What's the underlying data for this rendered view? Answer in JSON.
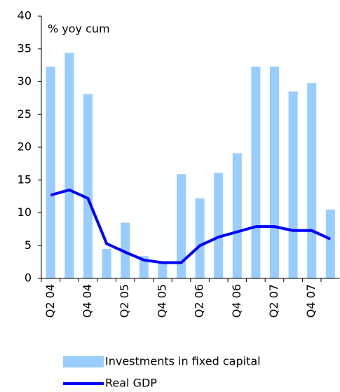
{
  "chart_data": {
    "type": "bar_line",
    "annotation": "% yoy cum",
    "categories": [
      "Q2 04",
      null,
      "Q4 04",
      null,
      "Q2 05",
      null,
      "Q4 05",
      null,
      "Q2 06",
      null,
      "Q4 06",
      null,
      "Q2 07",
      null,
      "Q4 07",
      null
    ],
    "series": [
      {
        "name": "Investments in fixed capital",
        "type": "bar",
        "color": "#99ccff",
        "values": [
          32.3,
          34.4,
          28.1,
          4.5,
          8.5,
          3.4,
          2.4,
          15.9,
          12.2,
          16.1,
          19.1,
          32.3,
          32.3,
          28.5,
          29.8,
          10.5
        ]
      },
      {
        "name": "Real GDP",
        "type": "line",
        "color": "#0000ff",
        "values": [
          12.7,
          13.5,
          12.2,
          5.3,
          4.0,
          2.8,
          2.4,
          2.4,
          5.0,
          6.3,
          7.1,
          7.9,
          7.9,
          7.3,
          7.3,
          6.0
        ]
      }
    ],
    "ylim": [
      0,
      40
    ],
    "yticks": [
      0,
      5,
      10,
      15,
      20,
      25,
      30,
      35,
      40
    ],
    "grid": false
  }
}
